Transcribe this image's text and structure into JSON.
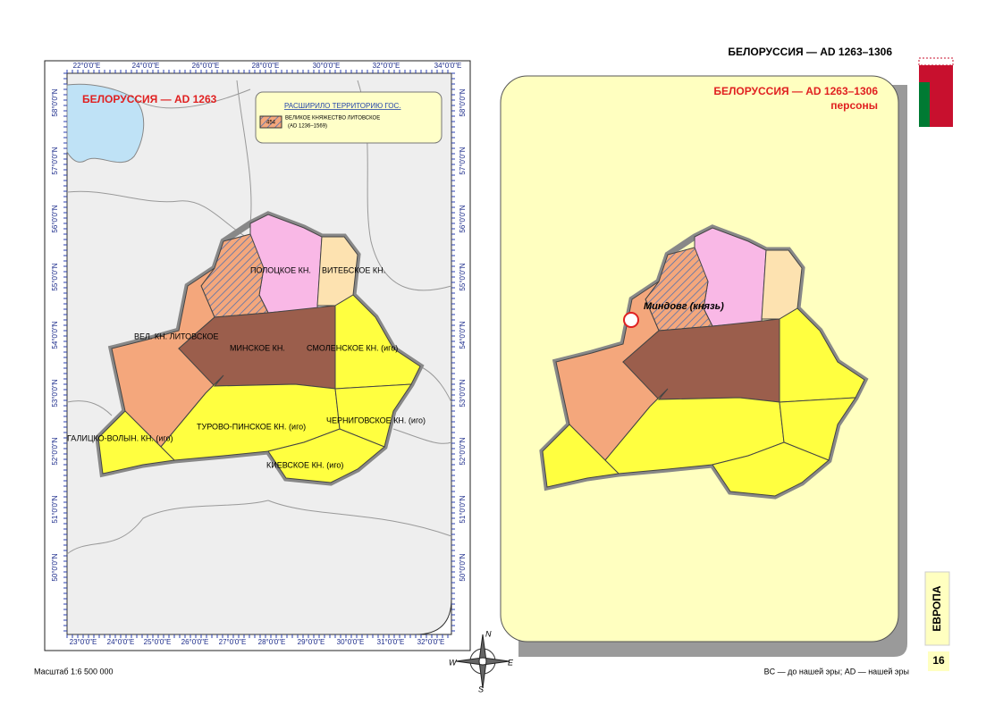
{
  "header": {
    "title": "БЕЛОРУССИЯ —  AD 1263–1306"
  },
  "left_map": {
    "title": "БЕЛОРУССИЯ — AD 1263",
    "legend": {
      "heading": "РАСШИРИЛО ТЕРРИТОРИЮ ГОС.",
      "code": "454",
      "name": "ВЕЛИКОЕ КНЯЖЕСТВО ЛИТОВСКОЕ",
      "period": "(AD 1236–1569)"
    },
    "lon_top": [
      "22°0'0\"E",
      "24°0'0\"E",
      "26°0'0\"E",
      "28°0'0\"E",
      "30°0'0\"E",
      "32°0'0\"E",
      "34°0'0\"E"
    ],
    "lon_bottom": [
      "23°0'0\"E",
      "24°0'0\"E",
      "25°0'0\"E",
      "26°0'0\"E",
      "27°0'0\"E",
      "28°0'0\"E",
      "29°0'0\"E",
      "30°0'0\"E",
      "31°0'0\"E",
      "32°0'0\"E"
    ],
    "lat": [
      "58°0'0\"N",
      "57°0'0\"N",
      "56°0'0\"N",
      "55°0'0\"N",
      "54°0'0\"N",
      "53°0'0\"N",
      "52°0'0\"N",
      "51°0'0\"N",
      "50°0'0\"N"
    ],
    "regions": [
      "ПОЛОЦКОЕ КН.",
      "ВИТЕБСКОЕ КН.",
      "ВЕЛ. КН. ЛИТОВСКОЕ",
      "МИНСКОЕ КН.",
      "СМОЛЕНСКОЕ КН. (иго)",
      "ТУРОВО-ПИНСКОЕ КН. (иго)",
      "ЧЕРНИГОВСКОЕ КН. (иго)",
      "ГАЛИЦКО-ВОЛЫН. КН. (иго)",
      "КИЕВСКОЕ КН. (иго)"
    ]
  },
  "right_map": {
    "title": "БЕЛОРУССИЯ — AD 1263–1306",
    "subtitle": "персоны",
    "person": "Миндовг (князь)"
  },
  "compass": {
    "n": "N",
    "e": "E",
    "s": "S",
    "w": "W"
  },
  "side": {
    "tab": "ЕВРОПА",
    "page": "16"
  },
  "footer": {
    "scale": "Масштаб 1:6 500 000",
    "note": "BC — до нашей эры; AD — нашей эры"
  }
}
